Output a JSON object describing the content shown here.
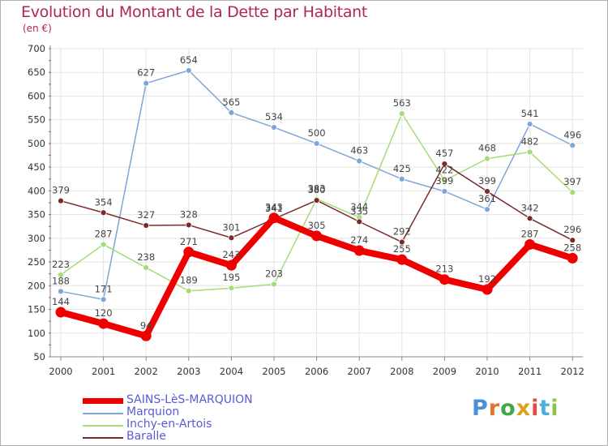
{
  "header": {
    "title": "Evolution du Montant de la Dette par Habitant",
    "unit": "(en €)"
  },
  "logo": {
    "text": "Proxiti"
  },
  "chart_data": {
    "type": "line",
    "title": "Evolution du Montant de la Dette par Habitant",
    "subtitle": "(en €)",
    "x": [
      "2000",
      "2001",
      "2002",
      "2003",
      "2004",
      "2005",
      "2006",
      "2007",
      "2008",
      "2009",
      "2010",
      "2011",
      "2012"
    ],
    "ylim": [
      50,
      700
    ],
    "yticks": [
      50,
      100,
      150,
      200,
      250,
      300,
      350,
      400,
      450,
      500,
      550,
      600,
      650,
      700
    ],
    "grid": true,
    "legend_position": "bottom-left",
    "series": [
      {
        "name": "SAINS-LèS-MARQUION",
        "color": "#ee0000",
        "width": 8,
        "values": [
          144,
          120,
          94,
          271,
          243,
          343,
          305,
          274,
          255,
          213,
          192,
          287,
          258
        ]
      },
      {
        "name": "Marquion",
        "color": "#7da7d9",
        "width": 1.5,
        "values": [
          188,
          171,
          627,
          654,
          565,
          534,
          500,
          463,
          425,
          399,
          361,
          541,
          496
        ]
      },
      {
        "name": "Inchy-en-Artois",
        "color": "#a6dc78",
        "width": 1.5,
        "values": [
          223,
          287,
          238,
          189,
          195,
          203,
          383,
          344,
          563,
          422,
          468,
          482,
          397
        ]
      },
      {
        "name": "Baralle",
        "color": "#7a2a2a",
        "width": 1.5,
        "values": [
          379,
          354,
          327,
          328,
          301,
          341,
          380,
          335,
          292,
          457,
          399,
          342,
          296
        ]
      }
    ]
  }
}
